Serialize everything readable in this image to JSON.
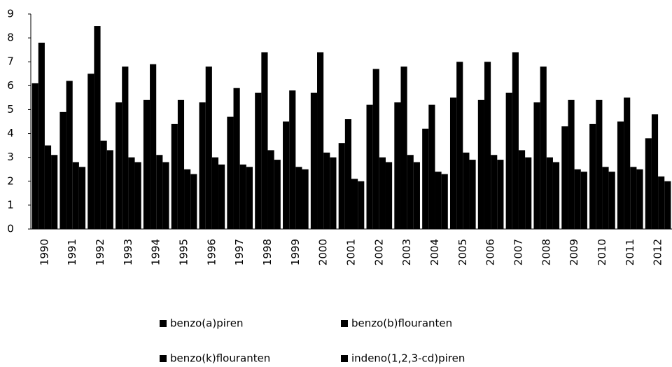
{
  "chart_data": {
    "type": "bar",
    "categories": [
      "1990",
      "1991",
      "1992",
      "1993",
      "1994",
      "1995",
      "1996",
      "1997",
      "1998",
      "1999",
      "2000",
      "2001",
      "2002",
      "2003",
      "2004",
      "2005",
      "2006",
      "2007",
      "2008",
      "2009",
      "2010",
      "2011",
      "2012"
    ],
    "series": [
      {
        "name": "benzo(a)piren",
        "color": "#000000",
        "values": [
          6.1,
          4.9,
          6.5,
          5.3,
          5.4,
          4.4,
          5.3,
          4.7,
          5.7,
          4.5,
          5.7,
          3.6,
          5.2,
          5.3,
          4.2,
          5.5,
          5.4,
          5.7,
          5.3,
          4.3,
          4.4,
          4.5,
          3.8
        ]
      },
      {
        "name": "benzo(b)flouranten",
        "color": "#000000",
        "values": [
          7.8,
          6.2,
          8.5,
          6.8,
          6.9,
          5.4,
          6.8,
          5.9,
          7.4,
          5.8,
          7.4,
          4.6,
          6.7,
          6.8,
          5.2,
          7.0,
          7.0,
          7.4,
          6.8,
          5.4,
          5.4,
          5.5,
          4.8
        ]
      },
      {
        "name": "benzo(k)flouranten",
        "color": "#000000",
        "values": [
          3.5,
          2.8,
          3.7,
          3.0,
          3.1,
          2.5,
          3.0,
          2.7,
          3.3,
          2.6,
          3.2,
          2.1,
          3.0,
          3.1,
          2.4,
          3.2,
          3.1,
          3.3,
          3.0,
          2.5,
          2.6,
          2.6,
          2.2
        ]
      },
      {
        "name": "indeno(1,2,3-cd)piren",
        "color": "#000000",
        "values": [
          3.1,
          2.6,
          3.3,
          2.8,
          2.8,
          2.3,
          2.7,
          2.6,
          2.9,
          2.5,
          3.0,
          2.0,
          2.8,
          2.8,
          2.3,
          2.9,
          2.9,
          3.0,
          2.8,
          2.4,
          2.4,
          2.5,
          2.0
        ]
      }
    ],
    "ylim": [
      0,
      9
    ],
    "yticks": [
      0,
      1,
      2,
      3,
      4,
      5,
      6,
      7,
      8,
      9
    ],
    "legend": "bottom"
  }
}
